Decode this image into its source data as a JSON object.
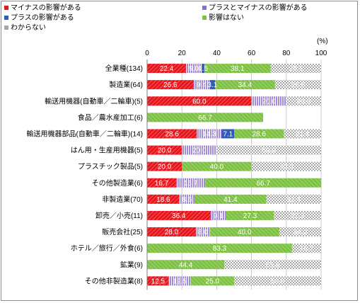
{
  "chart_data": {
    "type": "bar",
    "orientation": "horizontal",
    "stacked": true,
    "unit_label": "(%)",
    "xlim": [
      0,
      100
    ],
    "xticks": [
      0,
      20,
      40,
      60,
      80,
      100
    ],
    "legend_position": "top",
    "categories": [
      "全業種(134)",
      "製造業(64)",
      "輸送用機器(自動車／二輪車)(5)",
      "食品／農水産加工(6)",
      "輸送用機器部品(自動車／二輪車)(14)",
      "はん用・生産用機器(5)",
      "プラスチック製品(5)",
      "その他製造業(6)",
      "非製造業(70)",
      "卸売／小売(11)",
      "販売会社(25)",
      "ホテル／旅行／外食(6)",
      "鉱業(9)",
      "その他非製造業(8)"
    ],
    "series": [
      {
        "name": "マイナスの影響がある",
        "color": "#e8161c",
        "pattern": "hatch",
        "values": [
          22.4,
          26.6,
          60.0,
          0,
          28.6,
          20.0,
          20.0,
          16.7,
          18.6,
          36.4,
          28.0,
          0,
          0,
          12.5
        ]
      },
      {
        "name": "プラスとマイナスの影響がある",
        "color": "#8b6fcf",
        "pattern": "vlines",
        "values": [
          9.0,
          9.4,
          20.0,
          0,
          14.3,
          20.0,
          0,
          16.7,
          8.6,
          9.1,
          8.0,
          0,
          0,
          12.5
        ]
      },
      {
        "name": "プラスの影響がある",
        "color": "#2e5cb8",
        "pattern": "solid",
        "values": [
          1.5,
          3.1,
          0,
          0,
          7.1,
          0,
          0,
          0,
          0,
          0,
          0,
          0,
          0,
          0
        ]
      },
      {
        "name": "影響はない",
        "color": "#7dc142",
        "pattern": "hatch",
        "values": [
          38.1,
          34.4,
          0,
          66.7,
          28.6,
          0,
          40.0,
          66.7,
          41.4,
          27.3,
          40.0,
          83.3,
          44.4,
          25.0
        ]
      },
      {
        "name": "わからない",
        "color": "#a6a6a6",
        "pattern": "checker",
        "values": [
          29.1,
          26.6,
          20.0,
          0,
          21.4,
          60.0,
          40.0,
          0,
          31.4,
          27.3,
          24.0,
          16.7,
          55.6,
          50.0
        ]
      }
    ]
  }
}
